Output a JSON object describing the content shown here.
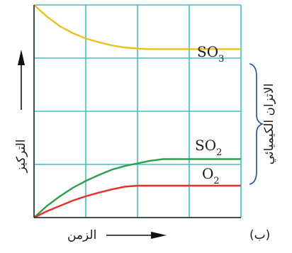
{
  "chart_data": {
    "type": "line",
    "title": "",
    "xlabel": "الزمن",
    "ylabel": "التركيز",
    "grid": true,
    "annotation": "الاتزان الكيميائي",
    "panel_label": "(ب)",
    "x": [
      0,
      0.25,
      0.5,
      0.75,
      1,
      1.25,
      1.5,
      1.75,
      2,
      2.25,
      2.5,
      2.75,
      3,
      3.25,
      3.5,
      3.75,
      4
    ],
    "series": [
      {
        "name": "SO3",
        "subscript_text": "SO",
        "subscript": "3",
        "color": "#e8c21a",
        "values": [
          4.0,
          3.78,
          3.6,
          3.47,
          3.37,
          3.3,
          3.24,
          3.2,
          3.18,
          3.17,
          3.17,
          3.17,
          3.17,
          3.17,
          3.17,
          3.17,
          3.17
        ]
      },
      {
        "name": "SO2",
        "subscript_text": "SO",
        "subscript": "2",
        "color": "#2aa04a",
        "values": [
          0.0,
          0.22,
          0.4,
          0.56,
          0.69,
          0.8,
          0.9,
          0.97,
          1.02,
          1.07,
          1.1,
          1.1,
          1.1,
          1.1,
          1.1,
          1.1,
          1.1
        ]
      },
      {
        "name": "O2",
        "subscript_text": "O",
        "subscript": "2",
        "color": "#e8302a",
        "values": [
          0.0,
          0.12,
          0.22,
          0.32,
          0.4,
          0.47,
          0.53,
          0.58,
          0.6,
          0.6,
          0.6,
          0.6,
          0.6,
          0.6,
          0.6,
          0.6,
          0.6
        ]
      }
    ],
    "xlim": [
      0,
      4
    ],
    "ylim": [
      0,
      4
    ],
    "grid_color": "#3ec1c1"
  }
}
